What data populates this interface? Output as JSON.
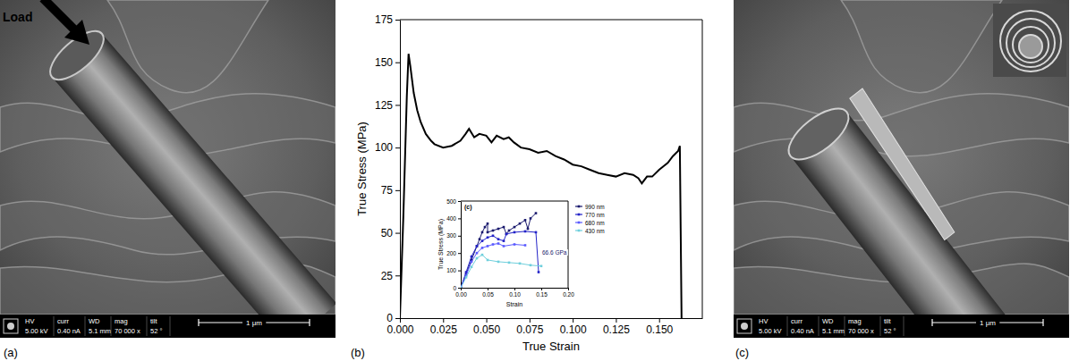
{
  "figure": {
    "panel_labels": [
      "(a)",
      "(b)",
      "(c)"
    ],
    "micrographs": [
      {
        "annotation": "Load",
        "info_labels": [
          "HV",
          "curr",
          "WD",
          "mag",
          "tilt"
        ],
        "info_values": [
          "5.00 kV",
          "0.40 nA",
          "5.1 mm",
          "70 000 x",
          "52 °"
        ],
        "scale_bar": "1 μm"
      },
      {
        "info_labels": [
          "HV",
          "curr",
          "WD",
          "mag",
          "tilt"
        ],
        "info_values": [
          "5.00 kV",
          "0.40 nA",
          "5.1 mm",
          "70 000 x",
          "52 °"
        ],
        "scale_bar": "1 μm"
      }
    ]
  },
  "chart_data": [
    {
      "type": "line",
      "x_label": "True Strain",
      "y_label": "True Stress (MPa)",
      "grid": false,
      "xlim": [
        0,
        0.175
      ],
      "ylim": [
        0,
        175
      ],
      "xticks": [
        {
          "value": 0,
          "label": "0.000"
        },
        {
          "value": 0.025,
          "label": "0.025"
        },
        {
          "value": 0.05,
          "label": "0.050"
        },
        {
          "value": 0.075,
          "label": "0.075"
        },
        {
          "value": 0.1,
          "label": "0.100"
        },
        {
          "value": 0.125,
          "label": "0.125"
        },
        {
          "value": 0.15,
          "label": "0.150"
        }
      ],
      "yticks": [
        0,
        25,
        50,
        75,
        100,
        125,
        150,
        175
      ],
      "x": [
        0,
        0.002,
        0.004,
        0.005,
        0.006,
        0.008,
        0.01,
        0.012,
        0.015,
        0.018,
        0.02,
        0.025,
        0.03,
        0.035,
        0.038,
        0.04,
        0.043,
        0.046,
        0.05,
        0.053,
        0.056,
        0.06,
        0.063,
        0.066,
        0.07,
        0.075,
        0.08,
        0.085,
        0.09,
        0.095,
        0.1,
        0.105,
        0.11,
        0.115,
        0.12,
        0.125,
        0.13,
        0.135,
        0.138,
        0.14,
        0.143,
        0.146,
        0.15,
        0.155,
        0.158,
        0.161,
        0.162,
        0.163
      ],
      "series": [
        {
          "color": "#000000",
          "values": [
            0,
            60,
            130,
            155,
            148,
            132,
            122,
            115,
            108,
            104,
            102,
            100,
            101,
            104,
            108,
            111,
            106,
            108,
            107,
            103,
            107,
            105,
            106,
            103,
            100,
            99,
            97,
            98,
            95,
            93,
            90,
            89,
            87,
            85,
            84,
            83,
            85,
            84,
            82,
            79,
            83,
            83,
            87,
            91,
            95,
            98,
            101,
            0
          ]
        }
      ]
    },
    {
      "type": "line",
      "panel_label": "(c)",
      "x_label": "Strain",
      "y_label": "True Stress (MPa)",
      "grid": false,
      "legend": "right",
      "xlim": [
        0,
        0.2
      ],
      "ylim": [
        0,
        500
      ],
      "xticks": [
        {
          "value": 0,
          "label": "0.00"
        },
        {
          "value": 0.05,
          "label": "0.05"
        },
        {
          "value": 0.1,
          "label": "0.10"
        },
        {
          "value": 0.15,
          "label": "0.15"
        },
        {
          "value": 0.2,
          "label": "0.20"
        }
      ],
      "yticks": [
        0,
        100,
        200,
        300,
        400,
        500
      ],
      "annotations": [
        "66.6 GPa"
      ],
      "series": [
        {
          "name": "990 nm",
          "color": "#1a1a6e",
          "marker": "square",
          "x": [
            0,
            0.01,
            0.02,
            0.03,
            0.035,
            0.04,
            0.045,
            0.05,
            0.05,
            0.06,
            0.07,
            0.08,
            0.085,
            0.09,
            0.1,
            0.11,
            0.12,
            0.125,
            0.13,
            0.14
          ],
          "values": [
            0,
            80,
            160,
            240,
            280,
            320,
            350,
            370,
            320,
            330,
            340,
            350,
            310,
            330,
            350,
            370,
            390,
            340,
            400,
            430
          ]
        },
        {
          "name": "770 nm",
          "color": "#2323c8",
          "marker": "square",
          "x": [
            0,
            0.01,
            0.02,
            0.03,
            0.04,
            0.05,
            0.06,
            0.07,
            0.08,
            0.085,
            0.1,
            0.12,
            0.14,
            0.145
          ],
          "values": [
            0,
            90,
            180,
            240,
            270,
            290,
            300,
            280,
            270,
            310,
            320,
            325,
            320,
            90
          ]
        },
        {
          "name": "680 nm",
          "color": "#5a5aff",
          "marker": "square",
          "x": [
            0,
            0.01,
            0.02,
            0.03,
            0.04,
            0.05,
            0.06,
            0.07,
            0.08,
            0.1,
            0.12
          ],
          "values": [
            0,
            70,
            150,
            200,
            230,
            240,
            250,
            255,
            240,
            250,
            245
          ]
        },
        {
          "name": "430 nm",
          "color": "#6fcfdc",
          "marker": "square",
          "x": [
            0,
            0.01,
            0.02,
            0.03,
            0.04,
            0.05,
            0.07,
            0.09,
            0.11,
            0.13,
            0.15
          ],
          "values": [
            0,
            60,
            120,
            170,
            190,
            160,
            150,
            145,
            140,
            130,
            125
          ]
        }
      ]
    }
  ]
}
